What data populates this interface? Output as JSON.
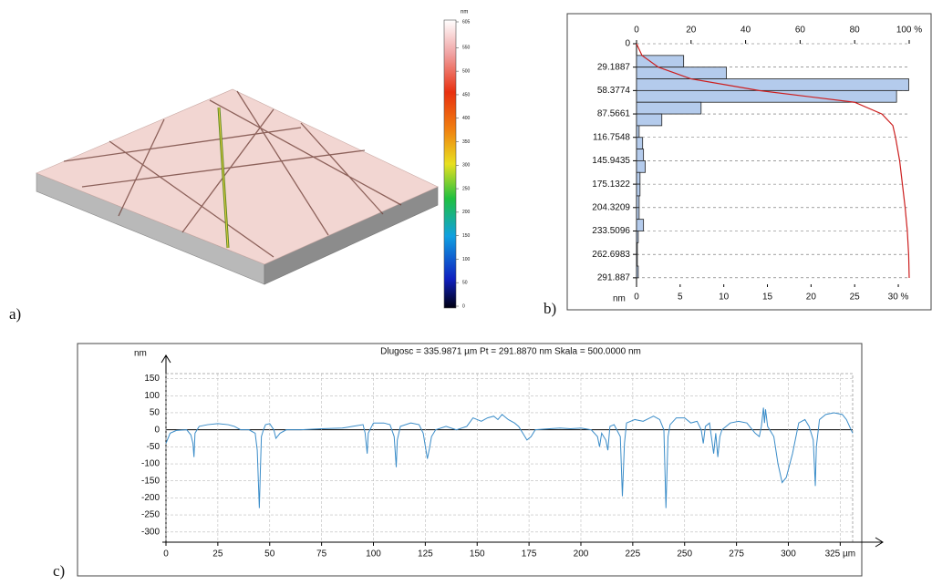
{
  "chart_data": [
    {
      "type": "colorbar",
      "panel_label": "a)",
      "unit": "nm",
      "ylim": [
        0,
        605
      ],
      "yticks": [
        0,
        50,
        100,
        150,
        200,
        250,
        300,
        350,
        400,
        450,
        500,
        550,
        605
      ]
    },
    {
      "type": "histogram",
      "panel_label": "b)",
      "ylabel": "nm",
      "bins": [
        0,
        14.59435,
        29.1887,
        43.78305,
        58.3774,
        72.97175,
        87.5661,
        102.16045,
        116.7548,
        131.34915,
        145.9435,
        160.53785,
        175.1322,
        189.72655,
        204.3209,
        218.91525,
        233.5096,
        248.10395,
        262.6983,
        277.29265,
        291.887
      ],
      "values": [
        0,
        5.4,
        10.3,
        31.2,
        29.8,
        7.4,
        2.9,
        0.3,
        0.7,
        0.8,
        1.0,
        0.4,
        0.4,
        0.3,
        0.3,
        0.8,
        0.2,
        0.1,
        0.1,
        0.2
      ],
      "color": "#b4cbec",
      "ylim": [
        0,
        300
      ],
      "yticks": [
        0,
        29.1887,
        58.3774,
        87.5661,
        116.7548,
        145.9435,
        175.1322,
        204.3209,
        233.5096,
        262.6983,
        291.887
      ],
      "xlim": [
        0,
        31.25
      ],
      "xticks": [
        0,
        5,
        10,
        15,
        20,
        25,
        {
          "value": 30,
          "label": "30 %"
        }
      ],
      "x2lim": [
        0,
        100
      ],
      "x2ticks": [
        0,
        20,
        40,
        60,
        80,
        {
          "value": 100,
          "label": "100 %"
        }
      ],
      "cumulative": {
        "color": "#cc1f1f",
        "axis": "x2",
        "y": [
          0,
          14.6,
          29.2,
          43.8,
          58.4,
          73,
          87.6,
          102,
          117,
          146,
          175,
          204,
          233,
          263,
          292
        ],
        "values": [
          0,
          2,
          8,
          20,
          45,
          80,
          90,
          94,
          95,
          96.5,
          97.5,
          98.5,
          99.3,
          99.8,
          100
        ]
      },
      "grid": true
    },
    {
      "type": "line",
      "panel_label": "c)",
      "ylabel": "nm",
      "title": "Dlugosc = 335.9871 µm  Pt = 291.8870 nm  Skala = 500.0000 nm",
      "x": [
        0,
        2,
        5,
        10,
        12,
        13,
        13.5,
        14,
        16,
        20,
        25,
        30,
        33,
        36,
        40,
        43,
        44,
        45,
        45.5,
        46,
        47,
        48,
        50,
        52,
        53,
        55,
        58,
        65,
        75,
        85,
        90,
        95,
        96,
        97,
        97.5,
        100,
        105,
        108,
        110,
        111,
        111.5,
        113,
        118,
        122,
        124,
        126,
        127,
        128,
        130,
        135,
        140,
        145,
        148,
        150,
        152,
        155,
        158,
        160,
        162,
        165,
        168,
        170,
        172,
        174,
        176,
        178,
        185,
        190,
        195,
        200,
        205,
        208,
        209,
        210,
        212,
        213,
        214,
        216,
        219,
        220,
        221,
        222,
        226,
        230,
        235,
        238,
        240,
        241,
        242,
        243,
        246,
        250,
        253,
        256,
        258,
        259,
        260,
        262,
        264,
        265,
        266,
        267,
        268,
        272,
        276,
        280,
        284,
        286,
        287,
        288,
        288.5,
        289,
        290,
        293,
        295,
        297,
        299,
        302,
        305,
        308,
        310,
        312,
        313,
        313.5,
        315,
        318,
        322,
        326,
        328,
        331
      ],
      "series": [
        {
          "color": "#3a8cc8",
          "values": [
            -40,
            -10,
            -2,
            0,
            -15,
            -40,
            -80,
            -10,
            10,
            15,
            18,
            15,
            10,
            0,
            0,
            -10,
            -60,
            -230,
            -120,
            -20,
            0,
            15,
            18,
            0,
            -25,
            -10,
            0,
            0,
            3,
            5,
            10,
            15,
            -10,
            -70,
            -10,
            20,
            20,
            15,
            -20,
            -110,
            -30,
            10,
            20,
            15,
            -10,
            -85,
            -55,
            -20,
            0,
            10,
            0,
            10,
            35,
            30,
            25,
            35,
            40,
            30,
            45,
            30,
            20,
            10,
            -10,
            -30,
            -20,
            0,
            3,
            5,
            3,
            5,
            0,
            -20,
            -50,
            -10,
            -30,
            -60,
            10,
            15,
            -20,
            -195,
            -40,
            20,
            30,
            25,
            40,
            30,
            0,
            -230,
            -20,
            15,
            35,
            35,
            20,
            25,
            0,
            -40,
            10,
            20,
            -70,
            -10,
            -80,
            -20,
            0,
            20,
            25,
            20,
            -10,
            -20,
            10,
            65,
            20,
            60,
            10,
            -20,
            -100,
            -155,
            -140,
            -70,
            20,
            30,
            10,
            -30,
            -165,
            -50,
            30,
            45,
            50,
            45,
            30,
            -10
          ]
        }
      ],
      "xlim": [
        0,
        331
      ],
      "xticks": [
        0,
        25,
        50,
        75,
        100,
        125,
        150,
        175,
        200,
        225,
        250,
        275,
        300,
        {
          "value": 325,
          "label": "325 µm"
        }
      ],
      "ylim": [
        -330,
        165
      ],
      "yticks": [
        150,
        100,
        50,
        0,
        -50,
        -100,
        -150,
        -200,
        -250,
        -300
      ],
      "grid": true
    }
  ]
}
